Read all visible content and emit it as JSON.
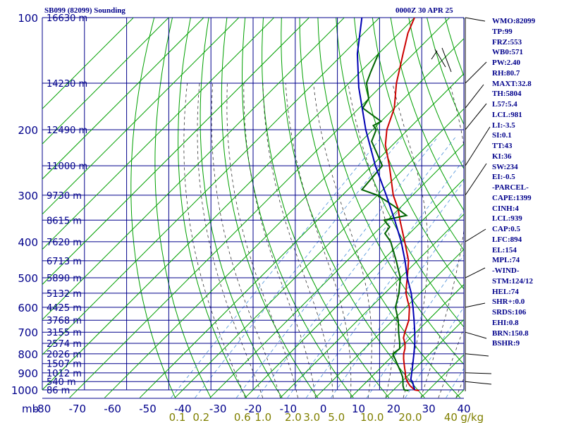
{
  "header": {
    "station": "SB099 (82099) Sounding",
    "time": "0000Z 30 APR 25"
  },
  "indices": [
    {
      "label": "WMO:82099"
    },
    {
      "label": "TP:99"
    },
    {
      "label": "FRZ:553"
    },
    {
      "label": "WB0:571"
    },
    {
      "label": "PW:2.40"
    },
    {
      "label": "RH:80.7"
    },
    {
      "label": "MAXT:32.8"
    },
    {
      "label": "TH:5804"
    },
    {
      "label": "L57:5.4"
    },
    {
      "label": "LCL:981"
    },
    {
      "label": "LI:-3.5"
    },
    {
      "label": "SI:0.1"
    },
    {
      "label": "TT:43"
    },
    {
      "label": "KI:36"
    },
    {
      "label": "SW:234"
    },
    {
      "label": "EI:-0.5"
    },
    {
      "label": "-PARCEL-"
    },
    {
      "label": "CAPE:1399"
    },
    {
      "label": "CINH:4"
    },
    {
      "label": "LCL:939"
    },
    {
      "label": "CAP:0.5"
    },
    {
      "label": "LFC:894"
    },
    {
      "label": "EL:154"
    },
    {
      "label": "MPL:74"
    },
    {
      "label": "-WIND-"
    },
    {
      "label": "STM:124/12"
    },
    {
      "label": "HEL:74"
    },
    {
      "label": "SHR+:0.0"
    },
    {
      "label": "SRDS:106"
    },
    {
      "label": "EHI:0.8"
    },
    {
      "label": "BRN:150.8"
    },
    {
      "label": "BSHR:9"
    }
  ],
  "chart_data": {
    "type": "line",
    "diagram": "skew-T log-p",
    "xlabel": "",
    "ylabel": "mb",
    "ylim": [
      1000,
      100
    ],
    "xlim": [
      -80,
      40
    ],
    "log_pressure_axis": true,
    "grid": true,
    "pressure_ticks": [
      "100",
      "200",
      "300",
      "400",
      "500",
      "600",
      "700",
      "800",
      "900",
      "1000"
    ],
    "temperature_ticks": [
      "-80",
      "-70",
      "-60",
      "-50",
      "-40",
      "-30",
      "-20",
      "-10",
      "0",
      "10",
      "20",
      "30",
      "40"
    ],
    "height_labels": [
      {
        "p": 100,
        "text": "16630 m"
      },
      {
        "p": 150,
        "text": "14230 m"
      },
      {
        "p": 200,
        "text": "12490 m"
      },
      {
        "p": 250,
        "text": "11000 m"
      },
      {
        "p": 300,
        "text": "9730 m"
      },
      {
        "p": 350,
        "text": "8615 m"
      },
      {
        "p": 400,
        "text": "7620 m"
      },
      {
        "p": 450,
        "text": "6713 m"
      },
      {
        "p": 500,
        "text": "5890 m"
      },
      {
        "p": 550,
        "text": "5132 m"
      },
      {
        "p": 600,
        "text": "4425 m"
      },
      {
        "p": 650,
        "text": "3768 m"
      },
      {
        "p": 700,
        "text": "3155 m"
      },
      {
        "p": 750,
        "text": "2574 m"
      },
      {
        "p": 800,
        "text": "2026 m"
      },
      {
        "p": 850,
        "text": "1507 m"
      },
      {
        "p": 900,
        "text": "1012 m"
      },
      {
        "p": 950,
        "text": "540 m"
      },
      {
        "p": 1000,
        "text": "86 m"
      }
    ],
    "mixing_ratio_labels": [
      "0.1",
      "0.2",
      "0.6",
      "1.0",
      "2.0",
      "3.0",
      "5.0",
      "10.0",
      "20.0",
      "40"
    ],
    "mixing_ratio_values": [
      0.1,
      0.2,
      0.6,
      1.0,
      2.0,
      3.0,
      5.0,
      10.0,
      20.0,
      40.0
    ],
    "mixing_ratio_unit": "g/kg",
    "series": [
      {
        "role": "temperature",
        "color": "#cc0000",
        "points": [
          {
            "p": 1005,
            "t": 27.5
          },
          {
            "p": 1000,
            "t": 26.0
          },
          {
            "p": 975,
            "t": 23.5
          },
          {
            "p": 950,
            "t": 21.5
          },
          {
            "p": 925,
            "t": 19.8
          },
          {
            "p": 900,
            "t": 18.5
          },
          {
            "p": 875,
            "t": 17.0
          },
          {
            "p": 850,
            "t": 15.5
          },
          {
            "p": 825,
            "t": 14.0
          },
          {
            "p": 800,
            "t": 12.6
          },
          {
            "p": 775,
            "t": 11.5
          },
          {
            "p": 750,
            "t": 10.0
          },
          {
            "p": 725,
            "t": 8.0
          },
          {
            "p": 700,
            "t": 6.8
          },
          {
            "p": 650,
            "t": 4.5
          },
          {
            "p": 600,
            "t": 1.0
          },
          {
            "p": 575,
            "t": -1.5
          },
          {
            "p": 550,
            "t": -4.0
          },
          {
            "p": 525,
            "t": -6.0
          },
          {
            "p": 500,
            "t": -8.0
          },
          {
            "p": 450,
            "t": -12.5
          },
          {
            "p": 400,
            "t": -19.0
          },
          {
            "p": 350,
            "t": -26.5
          },
          {
            "p": 325,
            "t": -30.5
          },
          {
            "p": 300,
            "t": -35.5
          },
          {
            "p": 250,
            "t": -45.0
          },
          {
            "p": 220,
            "t": -52.0
          },
          {
            "p": 200,
            "t": -56.0
          },
          {
            "p": 175,
            "t": -60.0
          },
          {
            "p": 150,
            "t": -66.5
          },
          {
            "p": 125,
            "t": -73.0
          },
          {
            "p": 110,
            "t": -77.5
          },
          {
            "p": 100,
            "t": -80.0
          }
        ]
      },
      {
        "role": "dewpoint",
        "color": "#006400",
        "points": [
          {
            "p": 1005,
            "t": 24.5
          },
          {
            "p": 1000,
            "t": 23.0
          },
          {
            "p": 975,
            "t": 21.5
          },
          {
            "p": 950,
            "t": 20.3
          },
          {
            "p": 925,
            "t": 19.0
          },
          {
            "p": 900,
            "t": 17.3
          },
          {
            "p": 850,
            "t": 13.5
          },
          {
            "p": 800,
            "t": 9.5
          },
          {
            "p": 775,
            "t": 10.0
          },
          {
            "p": 750,
            "t": 8.5
          },
          {
            "p": 700,
            "t": 5.0
          },
          {
            "p": 650,
            "t": 1.5
          },
          {
            "p": 600,
            "t": -3.0
          },
          {
            "p": 550,
            "t": -6.0
          },
          {
            "p": 500,
            "t": -10.0
          },
          {
            "p": 450,
            "t": -16.0
          },
          {
            "p": 400,
            "t": -23.0
          },
          {
            "p": 380,
            "t": -27.0
          },
          {
            "p": 365,
            "t": -27.5
          },
          {
            "p": 350,
            "t": -31.0
          },
          {
            "p": 340,
            "t": -26.0
          },
          {
            "p": 320,
            "t": -32.5
          },
          {
            "p": 300,
            "t": -40.0
          },
          {
            "p": 290,
            "t": -46.0
          },
          {
            "p": 250,
            "t": -47.0
          },
          {
            "p": 230,
            "t": -52.5
          },
          {
            "p": 215,
            "t": -57.0
          },
          {
            "p": 200,
            "t": -59.0
          },
          {
            "p": 195,
            "t": -61.0
          },
          {
            "p": 190,
            "t": -60.0
          },
          {
            "p": 175,
            "t": -69.0
          },
          {
            "p": 165,
            "t": -70.0
          },
          {
            "p": 150,
            "t": -75.0
          },
          {
            "p": 140,
            "t": -77.0
          },
          {
            "p": 125,
            "t": -80.0
          }
        ]
      },
      {
        "role": "parcel",
        "color": "#0000b4",
        "points": [
          {
            "p": 1000,
            "t": 26.0
          },
          {
            "p": 950,
            "t": 23.0
          },
          {
            "p": 939,
            "t": 22.0
          },
          {
            "p": 900,
            "t": 20.3
          },
          {
            "p": 850,
            "t": 18.0
          },
          {
            "p": 800,
            "t": 15.5
          },
          {
            "p": 750,
            "t": 12.8
          },
          {
            "p": 700,
            "t": 9.6
          },
          {
            "p": 650,
            "t": 6.0
          },
          {
            "p": 600,
            "t": 2.0
          },
          {
            "p": 550,
            "t": -2.5
          },
          {
            "p": 500,
            "t": -8.0
          },
          {
            "p": 450,
            "t": -13.5
          },
          {
            "p": 400,
            "t": -20.0
          },
          {
            "p": 350,
            "t": -28.0
          },
          {
            "p": 300,
            "t": -37.5
          },
          {
            "p": 250,
            "t": -49.0
          },
          {
            "p": 200,
            "t": -62.0
          },
          {
            "p": 154,
            "t": -76.0
          },
          {
            "p": 125,
            "t": -86.0
          },
          {
            "p": 100,
            "t": -95.0
          }
        ]
      }
    ],
    "wind_barbs_on_right": true
  }
}
